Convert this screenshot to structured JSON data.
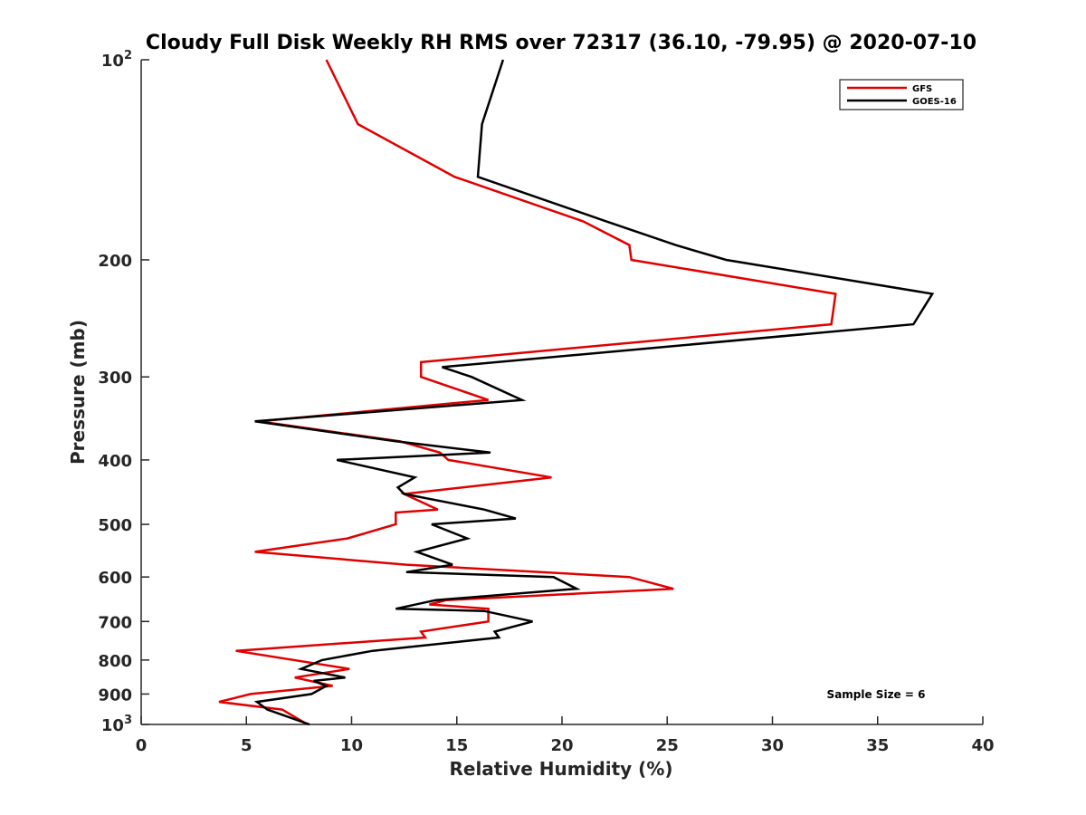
{
  "chart_data": {
    "type": "line",
    "title": "Cloudy Full Disk Weekly RH RMS over 72317 (36.10, -79.95) @ 2020-07-10",
    "xlabel": "Relative Humidity (%)",
    "ylabel": "Pressure (mb)",
    "xlim": [
      0,
      40
    ],
    "ylim": [
      100,
      1000
    ],
    "yscale": "log",
    "yreversed": true,
    "x_ticks": [
      "0",
      "5",
      "10",
      "15",
      "20",
      "25",
      "30",
      "35",
      "40"
    ],
    "y_ticks": [
      {
        "value": 100,
        "base": "10",
        "exp": "2"
      },
      {
        "value": 200,
        "label": "200"
      },
      {
        "value": 300,
        "label": "300"
      },
      {
        "value": 400,
        "label": "400"
      },
      {
        "value": 500,
        "label": "500"
      },
      {
        "value": 600,
        "label": "600"
      },
      {
        "value": 700,
        "label": "700"
      },
      {
        "value": 800,
        "label": "800"
      },
      {
        "value": 900,
        "label": "900"
      },
      {
        "value": 1000,
        "base": "10",
        "exp": "3"
      }
    ],
    "grid": false,
    "legend_position": "top-right",
    "annotation": "Sample Size = 6",
    "series": [
      {
        "name": "GFS",
        "color": "#e00000",
        "points": [
          [
            8.8,
            100
          ],
          [
            10.3,
            125
          ],
          [
            14.9,
            150
          ],
          [
            21.0,
            175
          ],
          [
            23.2,
            190
          ],
          [
            23.3,
            200
          ],
          [
            33.0,
            225
          ],
          [
            32.8,
            250
          ],
          [
            13.3,
            285
          ],
          [
            13.3,
            300
          ],
          [
            16.5,
            325
          ],
          [
            5.6,
            350
          ],
          [
            12.3,
            375
          ],
          [
            14.2,
            390
          ],
          [
            14.6,
            400
          ],
          [
            19.5,
            425
          ],
          [
            12.5,
            450
          ],
          [
            14.1,
            475
          ],
          [
            12.1,
            480
          ],
          [
            12.1,
            500
          ],
          [
            9.8,
            525
          ],
          [
            5.4,
            550
          ],
          [
            12.6,
            575
          ],
          [
            23.2,
            600
          ],
          [
            25.3,
            625
          ],
          [
            14.5,
            650
          ],
          [
            13.7,
            660
          ],
          [
            16.5,
            670
          ],
          [
            16.5,
            700
          ],
          [
            13.3,
            725
          ],
          [
            13.5,
            740
          ],
          [
            4.5,
            775
          ],
          [
            9.9,
            825
          ],
          [
            7.3,
            850
          ],
          [
            9.1,
            875
          ],
          [
            5.2,
            900
          ],
          [
            3.7,
            925
          ],
          [
            6.7,
            950
          ],
          [
            7.9,
            1000
          ]
        ]
      },
      {
        "name": "GOES-16",
        "color": "#000000",
        "points": [
          [
            17.2,
            100
          ],
          [
            16.2,
            125
          ],
          [
            16.0,
            150
          ],
          [
            22.1,
            175
          ],
          [
            25.4,
            190
          ],
          [
            27.8,
            200
          ],
          [
            37.6,
            225
          ],
          [
            36.7,
            250
          ],
          [
            14.3,
            290
          ],
          [
            15.7,
            300
          ],
          [
            18.1,
            325
          ],
          [
            5.4,
            350
          ],
          [
            12.1,
            375
          ],
          [
            16.6,
            390
          ],
          [
            9.3,
            400
          ],
          [
            13.0,
            425
          ],
          [
            12.2,
            440
          ],
          [
            12.5,
            450
          ],
          [
            16.3,
            475
          ],
          [
            17.8,
            490
          ],
          [
            13.8,
            500
          ],
          [
            15.5,
            525
          ],
          [
            13.1,
            550
          ],
          [
            14.8,
            575
          ],
          [
            12.6,
            590
          ],
          [
            19.6,
            600
          ],
          [
            20.7,
            625
          ],
          [
            14.0,
            650
          ],
          [
            12.1,
            670
          ],
          [
            16.3,
            675
          ],
          [
            18.6,
            700
          ],
          [
            16.8,
            725
          ],
          [
            17.0,
            740
          ],
          [
            11.0,
            775
          ],
          [
            8.6,
            800
          ],
          [
            7.6,
            825
          ],
          [
            9.7,
            850
          ],
          [
            8.2,
            860
          ],
          [
            8.8,
            875
          ],
          [
            8.1,
            900
          ],
          [
            5.5,
            925
          ],
          [
            6.0,
            950
          ],
          [
            8.0,
            1000
          ]
        ]
      }
    ]
  }
}
